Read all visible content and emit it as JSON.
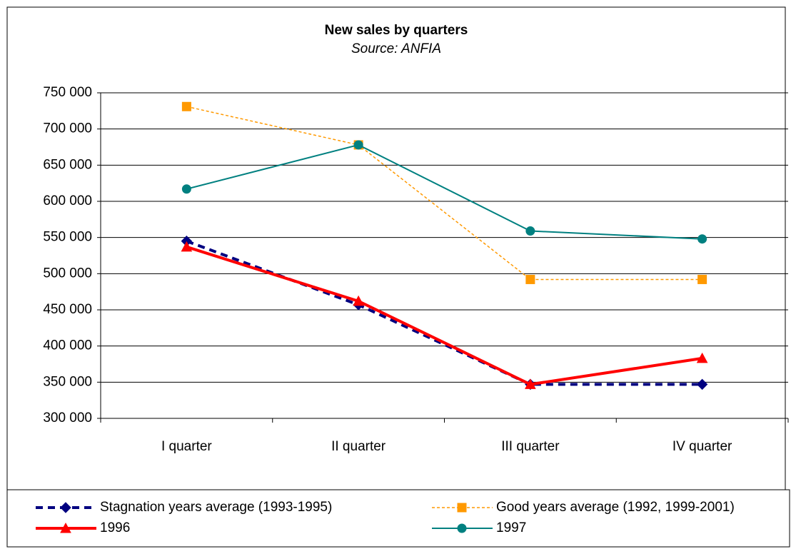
{
  "chart_data": {
    "type": "line",
    "title": "New sales by quarters",
    "subtitle": "Source: ANFIA",
    "categories": [
      "I quarter",
      "II quarter",
      "III quarter",
      "IV quarter"
    ],
    "series": [
      {
        "name": "Stagnation years average (1993-1995)",
        "color": "#000080",
        "dash": "dashed",
        "width": 4,
        "marker": "diamond",
        "values": [
          545000,
          457000,
          347000,
          347000
        ]
      },
      {
        "name": "Good years average (1992, 1999-2001)",
        "color": "#ff9900",
        "dash": "dotted",
        "width": 1.5,
        "marker": "square",
        "values": [
          731000,
          678000,
          492000,
          492000
        ]
      },
      {
        "name": "1996",
        "color": "#ff0000",
        "dash": "solid",
        "width": 4,
        "marker": "triangle",
        "values": [
          537000,
          462000,
          347000,
          383000
        ]
      },
      {
        "name": "1997",
        "color": "#008080",
        "dash": "solid",
        "width": 2,
        "marker": "circle",
        "values": [
          617000,
          678000,
          559000,
          548000
        ]
      }
    ],
    "ylim": [
      300000,
      750000
    ],
    "yticks": [
      {
        "value": 300000,
        "label": "300 000"
      },
      {
        "value": 350000,
        "label": "350 000"
      },
      {
        "value": 400000,
        "label": "400 000"
      },
      {
        "value": 450000,
        "label": "450 000"
      },
      {
        "value": 500000,
        "label": "500 000"
      },
      {
        "value": 550000,
        "label": "550 000"
      },
      {
        "value": 600000,
        "label": "600 000"
      },
      {
        "value": 650000,
        "label": "650 000"
      },
      {
        "value": 700000,
        "label": "700 000"
      },
      {
        "value": 750000,
        "label": "750 000"
      }
    ],
    "grid": true,
    "legend": "bottom"
  }
}
